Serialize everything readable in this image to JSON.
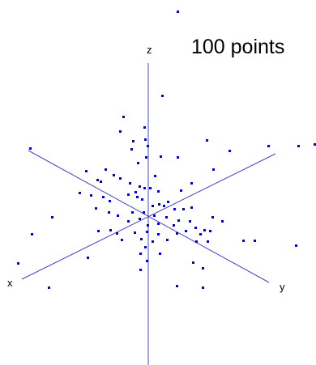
{
  "chart_data": {
    "type": "scatter",
    "title": "100 points",
    "axes": {
      "x_label": "x",
      "y_label": "y",
      "z_label": "z"
    },
    "grid": false,
    "legend": "none",
    "point_color": "#0000dd",
    "axis_color": "#4444cc",
    "point_count": 100,
    "points": [
      [
        219,
        14
      ],
      [
        200,
        118
      ],
      [
        152,
        144
      ],
      [
        148,
        162
      ],
      [
        178,
        157
      ],
      [
        164,
        174
      ],
      [
        179,
        172
      ],
      [
        37,
        183
      ],
      [
        162,
        184
      ],
      [
        182,
        180
      ],
      [
        180,
        194
      ],
      [
        198,
        193
      ],
      [
        219,
        194
      ],
      [
        255,
        173
      ],
      [
        283,
        186
      ],
      [
        331,
        180
      ],
      [
        368,
        180
      ],
      [
        388,
        178
      ],
      [
        170,
        201
      ],
      [
        106,
        211
      ],
      [
        120,
        222
      ],
      [
        130,
        209
      ],
      [
        124,
        224
      ],
      [
        140,
        216
      ],
      [
        148,
        220
      ],
      [
        160,
        226
      ],
      [
        172,
        230
      ],
      [
        178,
        232
      ],
      [
        167,
        237
      ],
      [
        191,
        217
      ],
      [
        195,
        236
      ],
      [
        185,
        232
      ],
      [
        236,
        226
      ],
      [
        223,
        235
      ],
      [
        207,
        249
      ],
      [
        263,
        209
      ],
      [
        98,
        238
      ],
      [
        112,
        241
      ],
      [
        127,
        243
      ],
      [
        135,
        248
      ],
      [
        158,
        240
      ],
      [
        169,
        243
      ],
      [
        175,
        246
      ],
      [
        188,
        254
      ],
      [
        196,
        252
      ],
      [
        202,
        254
      ],
      [
        215,
        258
      ],
      [
        226,
        258
      ],
      [
        236,
        256
      ],
      [
        118,
        257
      ],
      [
        134,
        262
      ],
      [
        145,
        266
      ],
      [
        163,
        262
      ],
      [
        177,
        262
      ],
      [
        190,
        266
      ],
      [
        205,
        268
      ],
      [
        220,
        272
      ],
      [
        234,
        273
      ],
      [
        262,
        268
      ],
      [
        64,
        268
      ],
      [
        158,
        273
      ],
      [
        172,
        270
      ],
      [
        182,
        278
      ],
      [
        195,
        276
      ],
      [
        214,
        278
      ],
      [
        241,
        281
      ],
      [
        252,
        284
      ],
      [
        274,
        273
      ],
      [
        136,
        284
      ],
      [
        121,
        285
      ],
      [
        144,
        288
      ],
      [
        166,
        287
      ],
      [
        181,
        286
      ],
      [
        195,
        289
      ],
      [
        218,
        288
      ],
      [
        229,
        285
      ],
      [
        247,
        289
      ],
      [
        259,
        285
      ],
      [
        39,
        289
      ],
      [
        150,
        296
      ],
      [
        174,
        295
      ],
      [
        188,
        298
      ],
      [
        206,
        296
      ],
      [
        242,
        298
      ],
      [
        256,
        298
      ],
      [
        300,
        297
      ],
      [
        314,
        297
      ],
      [
        365,
        303
      ],
      [
        179,
        305
      ],
      [
        173,
        313
      ],
      [
        197,
        313
      ],
      [
        238,
        324
      ],
      [
        22,
        325
      ],
      [
        108,
        318
      ],
      [
        181,
        322
      ],
      [
        173,
        333
      ],
      [
        250,
        331
      ],
      [
        60,
        355
      ],
      [
        218,
        353
      ],
      [
        250,
        355
      ]
    ]
  }
}
